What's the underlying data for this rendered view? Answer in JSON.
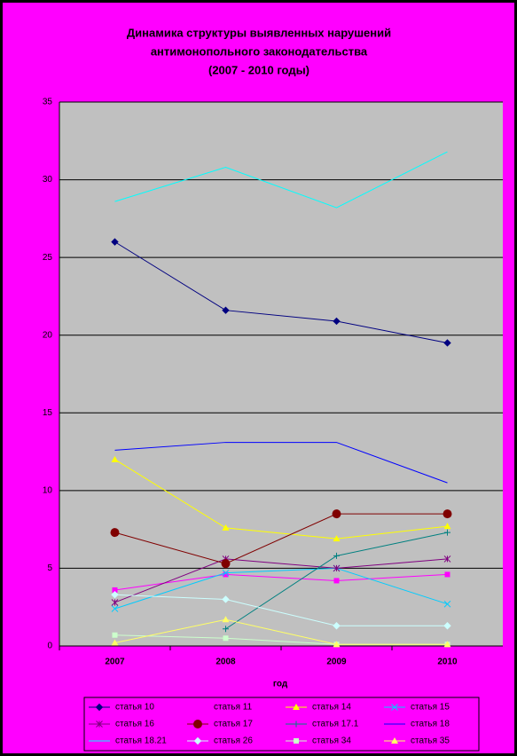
{
  "chart_data": {
    "type": "line",
    "title": [
      "Динамика структуры выявленных нарушений",
      "антимонопольного законодательства",
      "(2007 - 2010 годы)"
    ],
    "x_label": "год",
    "categories": [
      "2007",
      "2008",
      "2009",
      "2010"
    ],
    "ylim": [
      0,
      35
    ],
    "yticks": [
      0,
      5,
      10,
      15,
      20,
      25,
      30,
      35
    ],
    "grid": true,
    "series": [
      {
        "name": "статья 10",
        "color": "#000080",
        "marker": "diamond",
        "values": [
          26.0,
          21.6,
          20.9,
          19.5
        ]
      },
      {
        "name": "статья 11",
        "color": "#ff00ff",
        "marker": "square",
        "values": [
          3.6,
          4.6,
          4.2,
          4.6
        ]
      },
      {
        "name": "статья 14",
        "color": "#ffff00",
        "marker": "triangle",
        "values": [
          12.0,
          7.6,
          6.9,
          7.7
        ]
      },
      {
        "name": "статья 15",
        "color": "#00ccff",
        "marker": "x",
        "values": [
          2.4,
          4.7,
          5.0,
          2.7
        ]
      },
      {
        "name": "статья 16",
        "color": "#800080",
        "marker": "asterisk",
        "values": [
          2.8,
          5.6,
          5.0,
          5.6
        ]
      },
      {
        "name": "статья 17",
        "color": "#800000",
        "marker": "circle",
        "values": [
          7.3,
          5.3,
          8.5,
          8.5
        ]
      },
      {
        "name": "статья 17.1",
        "color": "#008080",
        "marker": "plus",
        "values": [
          null,
          1.1,
          5.8,
          7.3
        ]
      },
      {
        "name": "статья 18",
        "color": "#0000ff",
        "marker": "none",
        "values": [
          12.6,
          13.1,
          13.1,
          10.5
        ]
      },
      {
        "name": "статья 18.21",
        "color": "#00ffff",
        "marker": "none",
        "values": [
          28.6,
          30.8,
          28.2,
          31.8
        ]
      },
      {
        "name": "статья 26",
        "color": "#ccffff",
        "marker": "diamond",
        "values": [
          3.3,
          3.0,
          1.3,
          1.3
        ]
      },
      {
        "name": "статья 34",
        "color": "#ccffcc",
        "marker": "square",
        "values": [
          0.7,
          0.5,
          0.1,
          0.1
        ]
      },
      {
        "name": "статья 35",
        "color": "#ffff66",
        "marker": "triangle",
        "values": [
          0.2,
          1.7,
          0.1,
          0.1
        ]
      }
    ]
  }
}
